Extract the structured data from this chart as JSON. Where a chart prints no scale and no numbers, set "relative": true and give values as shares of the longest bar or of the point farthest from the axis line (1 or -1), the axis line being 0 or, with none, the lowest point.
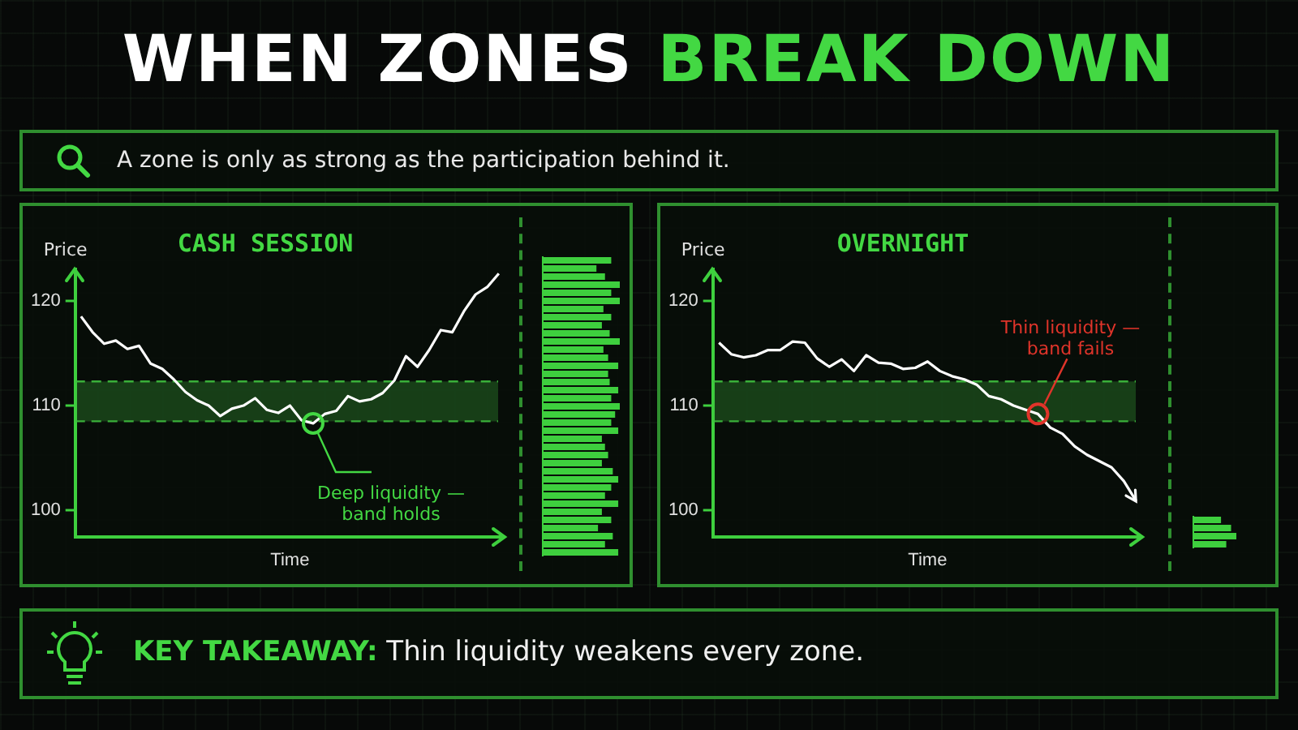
{
  "chart_data": [
    {
      "type": "other",
      "title": "WHEN ZONES BREAK DOWN",
      "subtitle": "A zone is only as strong as the participation behind it.",
      "annotations": [
        "KEY TAKEAWAY: Thin liquidity weakens every zone."
      ]
    },
    {
      "type": "line",
      "title": "CASH SESSION",
      "xlabel": "Time",
      "ylabel": "Price",
      "categories": [
        null,
        null,
        null,
        null,
        null,
        null,
        null,
        null,
        null,
        null,
        null,
        null,
        null,
        null,
        null,
        null,
        null,
        null,
        null,
        null,
        null,
        null,
        null,
        null,
        null,
        null,
        null,
        null,
        null,
        null,
        null,
        null,
        null,
        null,
        null,
        null,
        null
      ],
      "series": [
        {
          "color": "#ffffff",
          "values": [
            118.5,
            117.0,
            115.9,
            116.2,
            115.4,
            115.7,
            114.0,
            113.5,
            112.5,
            111.3,
            110.5,
            110.0,
            109.0,
            109.7,
            110.0,
            110.7,
            109.6,
            109.3,
            110.0,
            108.6,
            108.3,
            109.2,
            109.5,
            110.9,
            110.4,
            110.6,
            111.2,
            112.4,
            114.7,
            113.7,
            115.3,
            117.2,
            117.0,
            119.0,
            120.6,
            121.3,
            122.6
          ]
        }
      ],
      "ylim": [
        97.5,
        123
      ],
      "yticks": [
        100,
        110,
        120
      ],
      "marker": "none",
      "bands": [
        {
          "axis": "y",
          "from": 108.5,
          "to": 112.3,
          "color": "#3fbf3f"
        }
      ],
      "ref_lines": [
        {
          "axis": "y",
          "value": 108.5,
          "color": "#3fbf3f",
          "line_style": "dashed"
        },
        {
          "axis": "y",
          "value": 112.3,
          "color": "#3fbf3f",
          "line_style": "dashed"
        }
      ],
      "annotations": [
        "Deep liquidity — band holds"
      ]
    },
    {
      "type": "line",
      "title": "OVERNIGHT",
      "xlabel": "Time",
      "ylabel": "Price",
      "categories": [
        null,
        null,
        null,
        null,
        null,
        null,
        null,
        null,
        null,
        null,
        null,
        null,
        null,
        null,
        null,
        null,
        null,
        null,
        null,
        null,
        null,
        null,
        null,
        null,
        null,
        null,
        null,
        null,
        null,
        null,
        null,
        null,
        null,
        null,
        null
      ],
      "series": [
        {
          "color": "#ffffff",
          "values": [
            116.0,
            114.9,
            114.6,
            114.8,
            115.3,
            115.3,
            116.1,
            116.0,
            114.5,
            113.7,
            114.4,
            113.3,
            114.8,
            114.1,
            114.0,
            113.5,
            113.6,
            114.2,
            113.3,
            112.8,
            112.5,
            112.0,
            110.9,
            110.6,
            110.0,
            109.6,
            109.2,
            107.9,
            107.3,
            106.1,
            105.3,
            104.7,
            104.1,
            102.8,
            100.9
          ]
        }
      ],
      "ylim": [
        97.5,
        123
      ],
      "yticks": [
        100,
        110,
        120
      ],
      "marker": "none",
      "bands": [
        {
          "axis": "y",
          "from": 108.5,
          "to": 112.3,
          "color": "#3fbf3f"
        }
      ],
      "ref_lines": [
        {
          "axis": "y",
          "value": 108.5,
          "color": "#3fbf3f",
          "line_style": "dashed"
        },
        {
          "axis": "y",
          "value": 112.3,
          "color": "#3fbf3f",
          "line_style": "dashed"
        }
      ],
      "annotations": [
        "Thin liquidity — band fails"
      ]
    },
    {
      "type": "bar",
      "orientation": "horizontal",
      "relative": true,
      "color": "#3ecf3e",
      "categories": [
        null,
        null,
        null,
        null,
        null,
        null,
        null,
        null,
        null,
        null,
        null,
        null,
        null,
        null,
        null,
        null,
        null,
        null,
        null,
        null,
        null,
        null,
        null,
        null,
        null,
        null,
        null,
        null,
        null,
        null,
        null,
        null,
        null,
        null,
        null,
        null,
        null
      ],
      "values": [
        0.89,
        0.7,
        0.81,
        1,
        0.89,
        1,
        0.79,
        0.89,
        0.77,
        0.87,
        1,
        0.79,
        0.85,
        0.98,
        0.85,
        0.87,
        0.98,
        0.89,
        1,
        0.94,
        0.89,
        0.98,
        0.77,
        0.81,
        0.85,
        0.77,
        0.91,
        0.98,
        0.89,
        0.81,
        0.98,
        0.77,
        0.89,
        0.72,
        0.91,
        0.81,
        0.98
      ]
    },
    {
      "type": "bar",
      "orientation": "horizontal",
      "relative": true,
      "color": "#3ecf3e",
      "categories": [
        null,
        null,
        null,
        null
      ],
      "values": [
        0.65,
        0.88,
        1,
        0.77
      ]
    }
  ]
}
